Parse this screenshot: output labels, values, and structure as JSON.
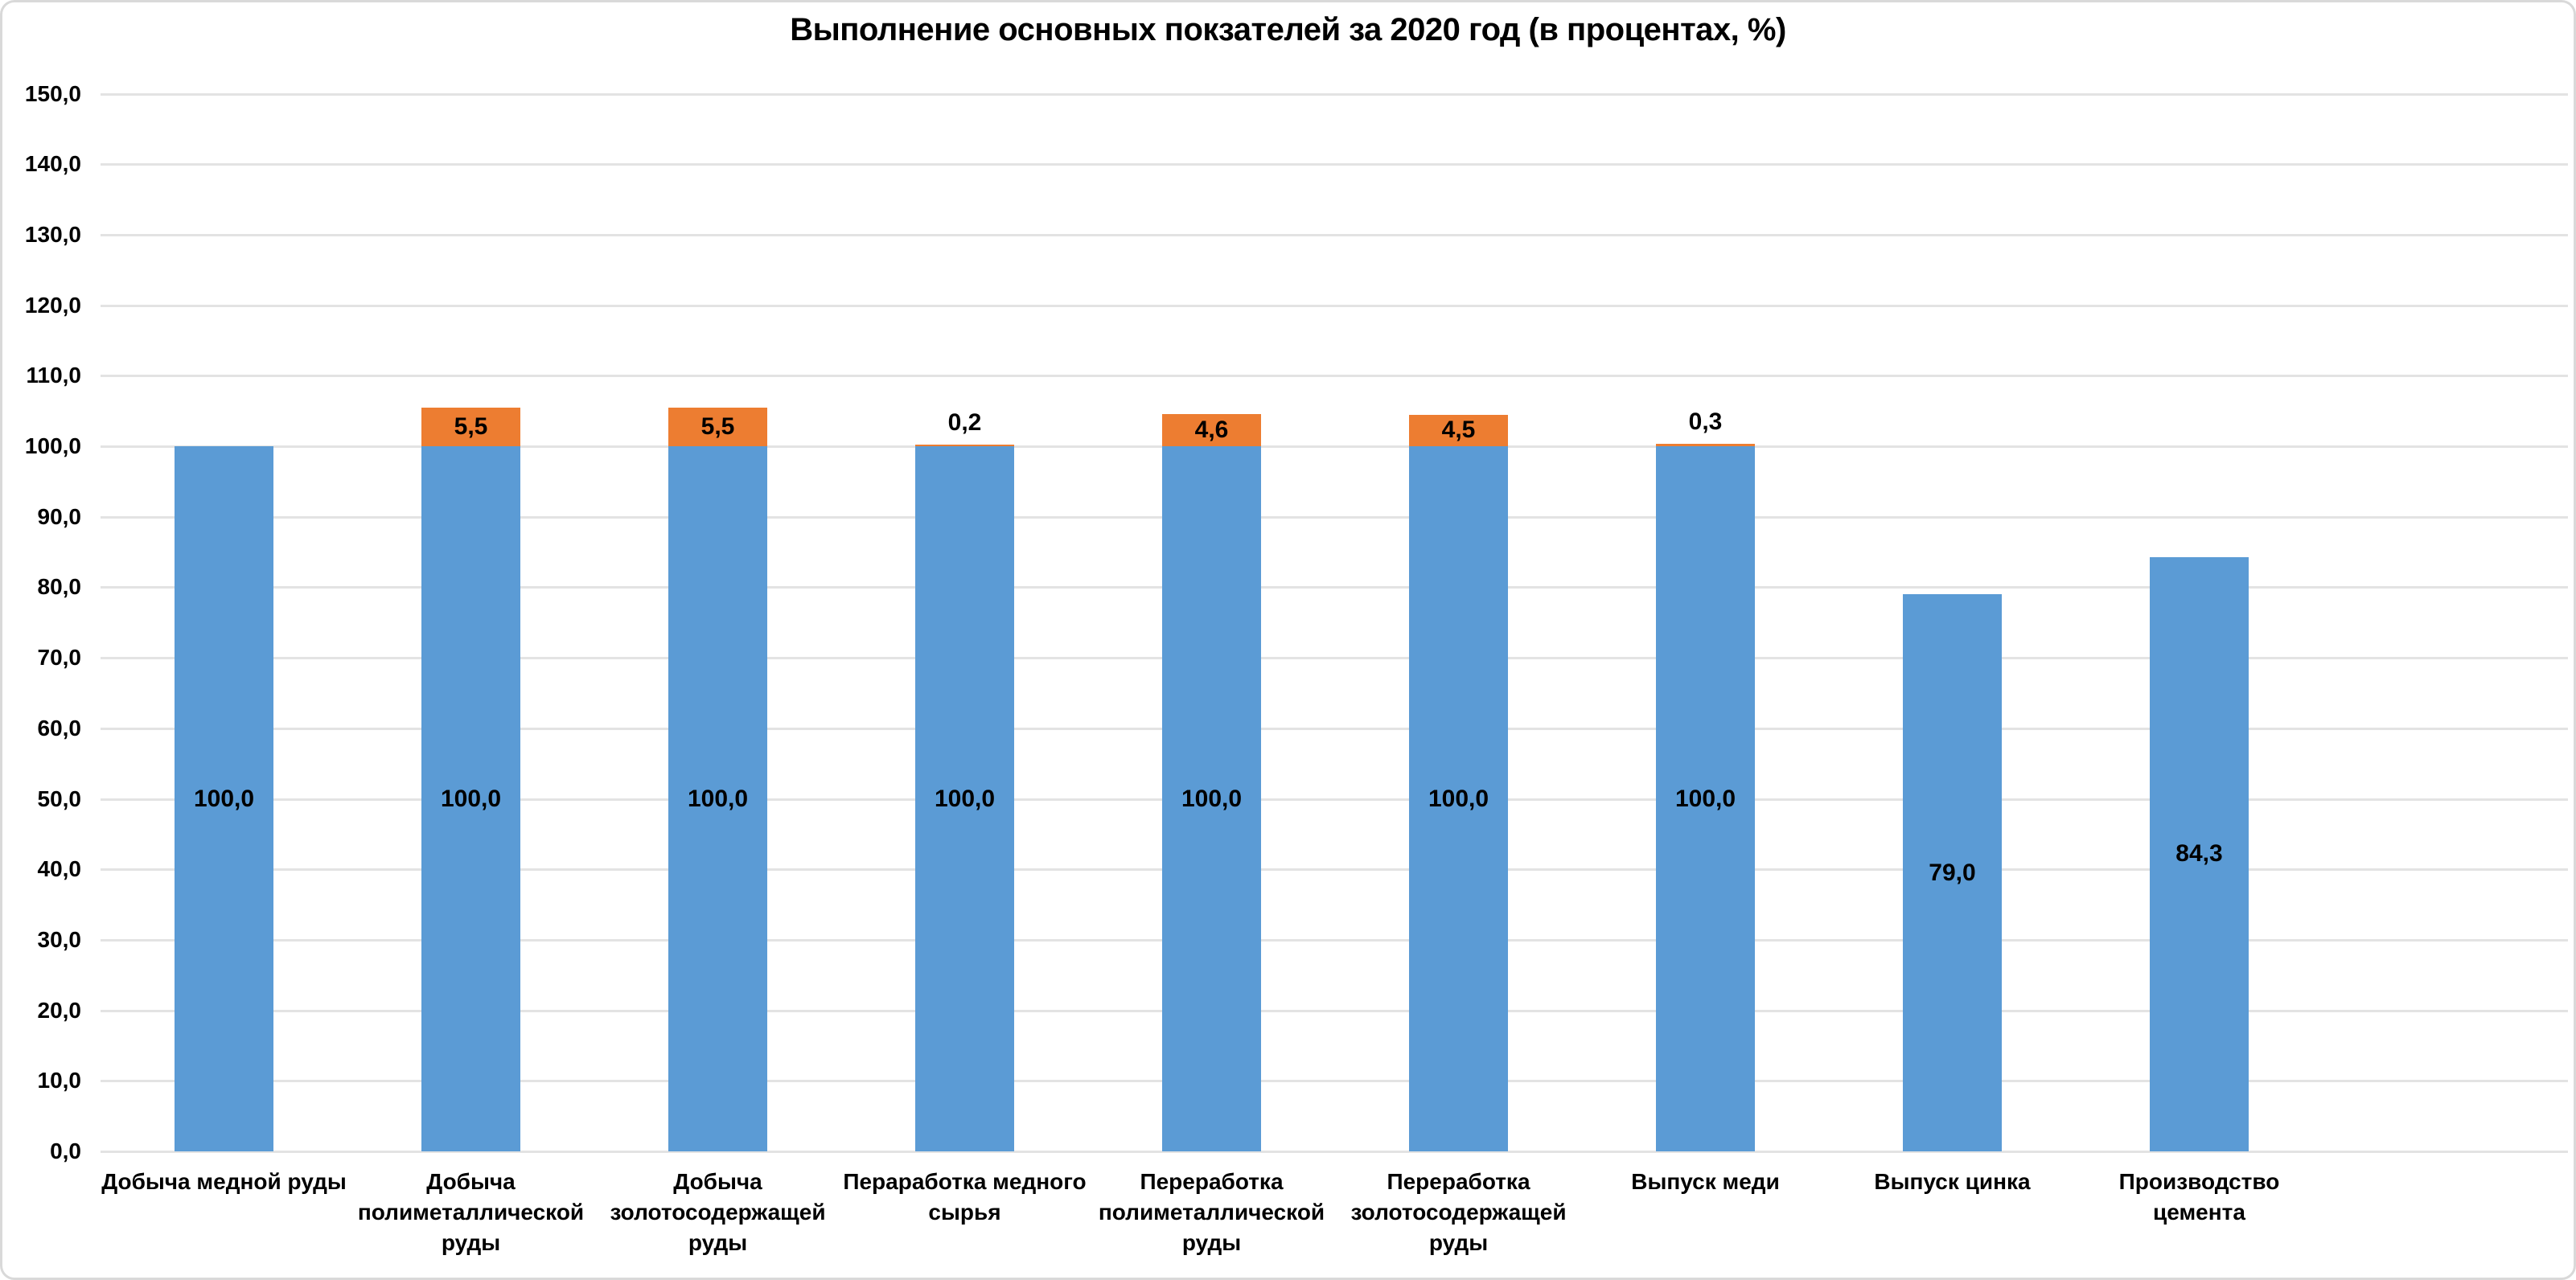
{
  "chart_data": {
    "type": "bar",
    "subtype": "stacked-column",
    "title": "Выполнение основных покзателей за 2020 год (в процентах, %)",
    "categories": [
      "Добыча медной руды",
      "Добыча полиметаллической руды",
      "Добыча золотосодержащей руды",
      "Пераработка медного сырья",
      "Переработка полиметаллической руды",
      "Переработка золотосодержащей руды",
      "Выпуск меди",
      "Выпуск цинка",
      "Производство цемента"
    ],
    "series": [
      {
        "role": "base",
        "color": "#5B9BD5",
        "values": [
          100.0,
          100.0,
          100.0,
          100.0,
          100.0,
          100.0,
          100.0,
          79.0,
          84.3
        ],
        "labels": [
          "100,0",
          "100,0",
          "100,0",
          "100,0",
          "100,0",
          "100,0",
          "100,0",
          "79,0",
          "84,3"
        ]
      },
      {
        "role": "overflow",
        "color": "#ED7D31",
        "values": [
          0,
          5.5,
          5.5,
          0.2,
          4.6,
          4.5,
          0.3,
          0,
          0
        ],
        "labels": [
          "",
          "5,5",
          "5,5",
          "0,2",
          "4,6",
          "4,5",
          "0,3",
          "",
          ""
        ]
      }
    ],
    "y_axis": {
      "min": 0,
      "max": 150,
      "step": 10,
      "tick_labels": [
        "0,0",
        "10,0",
        "20,0",
        "30,0",
        "40,0",
        "50,0",
        "60,0",
        "70,0",
        "80,0",
        "90,0",
        "100,0",
        "110,0",
        "120,0",
        "130,0",
        "140,0",
        "150,0"
      ]
    },
    "grid": true,
    "legend": "none",
    "colors": {
      "bar_primary": "#5B9BD5",
      "bar_overflow": "#ED7D31",
      "gridline": "#E3E3E3",
      "frame_border": "#D9D9D9",
      "text": "#000000"
    }
  }
}
